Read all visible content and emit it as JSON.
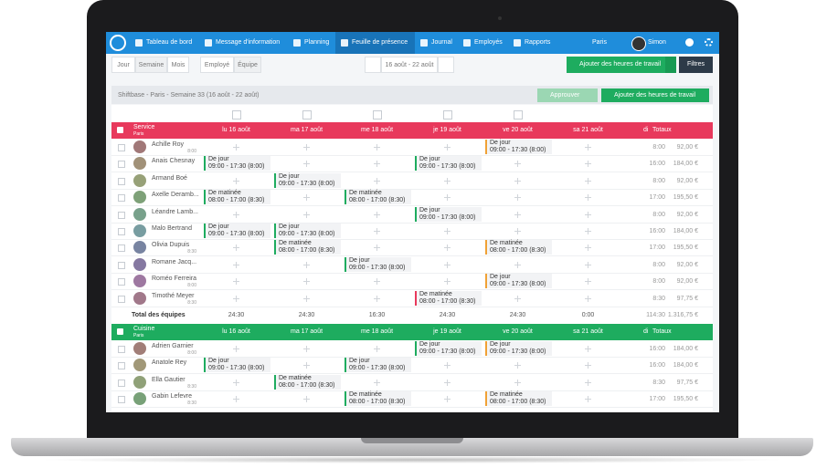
{
  "nav": {
    "items": [
      "Tableau de bord",
      "Message d'information",
      "Planning",
      "Feuille de présence",
      "Journal",
      "Employés",
      "Rapports"
    ],
    "location": "Paris",
    "user": "Simon"
  },
  "toolbar": {
    "views": [
      "Jour",
      "Semaine",
      "Mois"
    ],
    "groups": [
      "Employé",
      "Équipe"
    ],
    "date_range": "16 août - 22 août",
    "add_button": "Ajouter des heures de travail",
    "filter_button": "Filtres"
  },
  "subheader": {
    "title": "Shiftbase - Paris - Semaine 33 (16 août - 22 août)",
    "approve_button": "Approuver",
    "add_button": "Ajouter des heures de travail"
  },
  "teams": [
    {
      "name": "Service",
      "location": "Paris",
      "color": "#e8395c",
      "days": [
        "lu 16 août",
        "ma 17 août",
        "me 18 août",
        "je 19 août",
        "ve 20 août",
        "sa 21 août",
        "di"
      ],
      "totals_label": "Totaux",
      "employees": [
        {
          "name": "Achille Roy",
          "contract": "8:00",
          "shifts": [
            null,
            null,
            null,
            null,
            {
              "label": "De jour",
              "time": "09:00 - 17:30 (8:00)",
              "color": "#f0a135"
            },
            null
          ],
          "total_hours": "8:00",
          "total_cost": "92,00 €"
        },
        {
          "name": "Anais Chesnay",
          "shifts": [
            {
              "label": "De jour",
              "time": "09:00 - 17:30 (8:00)",
              "color": "#1eac5f"
            },
            null,
            null,
            {
              "label": "De jour",
              "time": "09:00 - 17:30 (8:00)",
              "color": "#1eac5f"
            },
            null,
            null
          ],
          "total_hours": "16:00",
          "total_cost": "184,00 €"
        },
        {
          "name": "Armand Boé",
          "shifts": [
            null,
            {
              "label": "De jour",
              "time": "09:00 - 17:30 (8:00)",
              "color": "#1eac5f"
            },
            null,
            null,
            null,
            null
          ],
          "total_hours": "8:00",
          "total_cost": "92,00 €"
        },
        {
          "name": "Axelle Deramb...",
          "shifts": [
            {
              "label": "De matinée",
              "time": "08:00 - 17:00 (8:30)",
              "color": "#1eac5f"
            },
            null,
            {
              "label": "De matinée",
              "time": "08:00 - 17:00 (8:30)",
              "color": "#1eac5f"
            },
            null,
            null,
            null
          ],
          "total_hours": "17:00",
          "total_cost": "195,50 €"
        },
        {
          "name": "Léandre Lamb...",
          "shifts": [
            null,
            null,
            null,
            {
              "label": "De jour",
              "time": "09:00 - 17:30 (8:00)",
              "color": "#1eac5f"
            },
            null,
            null
          ],
          "total_hours": "8:00",
          "total_cost": "92,00 €"
        },
        {
          "name": "Malo Bertrand",
          "shifts": [
            {
              "label": "De jour",
              "time": "09:00 - 17:30 (8:00)",
              "color": "#1eac5f"
            },
            {
              "label": "De jour",
              "time": "09:00 - 17:30 (8:00)",
              "color": "#1eac5f"
            },
            null,
            null,
            null,
            null
          ],
          "total_hours": "16:00",
          "total_cost": "184,00 €"
        },
        {
          "name": "Olivia Dupuis",
          "contract": "8:30",
          "shifts": [
            null,
            {
              "label": "De matinée",
              "time": "08:00 - 17:00 (8:30)",
              "color": "#1eac5f"
            },
            null,
            null,
            {
              "label": "De matinée",
              "time": "08:00 - 17:00 (8:30)",
              "color": "#f0a135"
            },
            null
          ],
          "total_hours": "17:00",
          "total_cost": "195,50 €"
        },
        {
          "name": "Romane Jacq...",
          "shifts": [
            null,
            null,
            {
              "label": "De jour",
              "time": "09:00 - 17:30 (8:00)",
              "color": "#1eac5f"
            },
            null,
            null,
            null
          ],
          "total_hours": "8:00",
          "total_cost": "92,00 €"
        },
        {
          "name": "Roméo Ferreira",
          "contract": "8:00",
          "shifts": [
            null,
            null,
            null,
            null,
            {
              "label": "De jour",
              "time": "09:00 - 17:30 (8:00)",
              "color": "#f0a135"
            },
            null
          ],
          "total_hours": "8:00",
          "total_cost": "92,00 €"
        },
        {
          "name": "Timothé Meyer",
          "contract": "8:30",
          "shifts": [
            null,
            null,
            null,
            {
              "label": "De matinée",
              "time": "08:00 - 17:00 (8:30)",
              "color": "#e8395c"
            },
            null,
            null
          ],
          "total_hours": "8:30",
          "total_cost": "97,75 €"
        }
      ],
      "totals": {
        "label": "Total des équipes",
        "days": [
          "24:30",
          "24:30",
          "16:30",
          "24:30",
          "24:30",
          "0:00"
        ],
        "hours": "114:30",
        "cost": "1.316,75 €"
      }
    },
    {
      "name": "Cuisine",
      "location": "Paris",
      "color": "#1eac5f",
      "days": [
        "lu 16 août",
        "ma 17 août",
        "me 18 août",
        "je 19 août",
        "ve 20 août",
        "sa 21 août",
        "di"
      ],
      "totals_label": "Totaux",
      "employees": [
        {
          "name": "Adrien Garnier",
          "contract": "8:00",
          "shifts": [
            null,
            null,
            null,
            {
              "label": "De jour",
              "time": "09:00 - 17:30 (8:00)",
              "color": "#1eac5f"
            },
            {
              "label": "De jour",
              "time": "09:00 - 17:30 (8:00)",
              "color": "#f0a135"
            },
            null
          ],
          "total_hours": "16:00",
          "total_cost": "184,00 €"
        },
        {
          "name": "Anatole Rey",
          "shifts": [
            {
              "label": "De jour",
              "time": "09:00 - 17:30 (8:00)",
              "color": "#1eac5f"
            },
            null,
            {
              "label": "De jour",
              "time": "09:00 - 17:30 (8:00)",
              "color": "#1eac5f"
            },
            null,
            null,
            null
          ],
          "total_hours": "16:00",
          "total_cost": "184,00 €"
        },
        {
          "name": "Ella Gautier",
          "contract": "8:30",
          "shifts": [
            null,
            {
              "label": "De matinée",
              "time": "08:00 - 17:00 (8:30)",
              "color": "#1eac5f"
            },
            null,
            null,
            null,
            null
          ],
          "total_hours": "8:30",
          "total_cost": "97,75 €"
        },
        {
          "name": "Gabin Lefevre",
          "contract": "8:30",
          "shifts": [
            null,
            null,
            {
              "label": "De matinée",
              "time": "08:00 - 17:00 (8:30)",
              "color": "#1eac5f"
            },
            null,
            {
              "label": "De matinée",
              "time": "08:00 - 17:00 (8:30)",
              "color": "#f0a135"
            },
            null
          ],
          "total_hours": "17:00",
          "total_cost": "195,50 €"
        }
      ]
    }
  ]
}
